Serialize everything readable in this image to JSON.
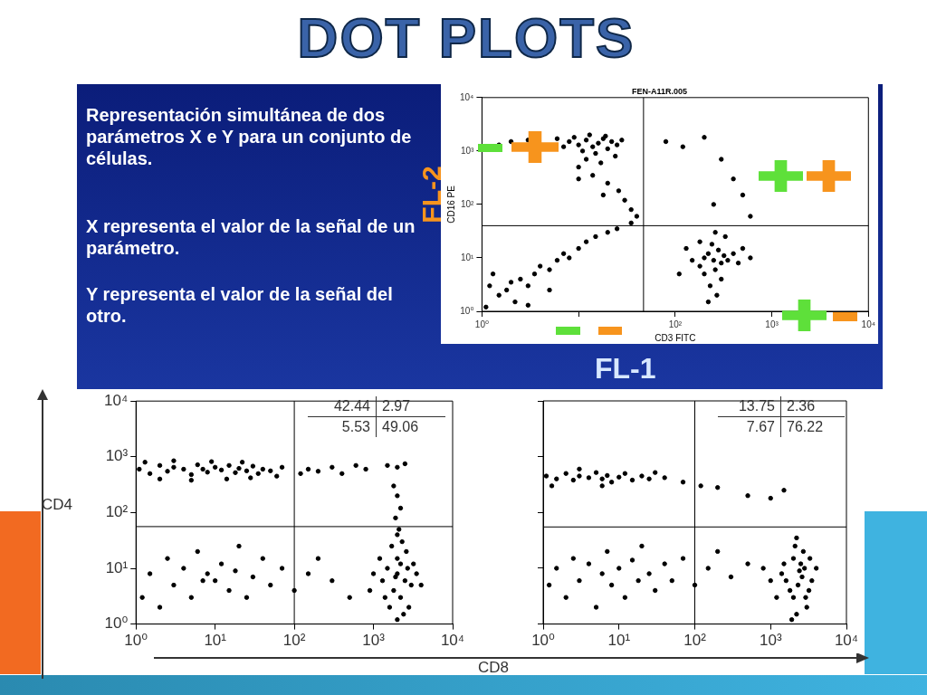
{
  "chart_data": [
    {
      "type": "other",
      "title": "DOT PLOTS",
      "annotations": [
        "Representación simultánea de dos parámetros X e Y para un conjunto de células.",
        "X representa el valor de la señal de un parámetro.",
        "Y representa el valor de la señal del otro."
      ]
    },
    {
      "type": "scatter",
      "title": "FEN-A11R.005",
      "xlabel": "CD3 FITC",
      "ylabel": "CD16 PE",
      "annotations": [
        "FL-2",
        "FL-1"
      ],
      "log": "xy",
      "color": "#000000",
      "marker": "circle",
      "grid": false,
      "legend": false,
      "xlim": [
        1,
        10000
      ],
      "ylim": [
        1,
        10000
      ],
      "xticks": [
        {
          "value": 1,
          "label": "10⁰"
        },
        {
          "value": 10,
          "label": null
        },
        {
          "value": 100,
          "label": "10²"
        },
        {
          "value": 1000,
          "label": "10³"
        },
        {
          "value": 10000,
          "label": "10⁴"
        }
      ],
      "yticks": [
        {
          "value": 1,
          "label": "10⁰"
        },
        {
          "value": 10,
          "label": "10¹"
        },
        {
          "value": 100,
          "label": "10²"
        },
        {
          "value": 1000,
          "label": "10³"
        },
        {
          "value": 10000,
          "label": "10⁴"
        }
      ],
      "ref_lines": [
        {
          "axis": "x",
          "value": 47
        },
        {
          "axis": "y",
          "value": 40
        }
      ],
      "x": [
        8,
        10,
        12,
        14,
        16,
        18,
        20,
        22,
        25,
        11,
        9,
        13,
        15,
        19,
        28,
        7,
        6,
        4,
        3,
        2,
        1.5,
        12,
        17,
        10,
        24,
        14,
        20,
        10,
        26,
        30,
        18,
        35,
        40,
        1.2,
        1.5,
        2,
        1.8,
        2.5,
        3,
        1.3,
        2.2,
        3.5,
        4,
        5,
        6,
        7,
        8,
        10,
        12,
        15,
        20,
        25,
        35,
        1.1,
        3,
        5,
        250,
        200,
        300,
        220,
        280,
        180,
        320,
        260,
        240,
        350,
        150,
        400,
        200,
        300,
        230,
        270,
        220,
        180,
        330,
        450,
        500,
        130,
        110,
        600,
        260,
        80,
        120,
        200,
        300,
        400,
        500,
        250,
        600
      ],
      "values": [
        1500,
        1300,
        1600,
        1200,
        1400,
        1700,
        1100,
        1500,
        1300,
        1000,
        1800,
        2000,
        900,
        1900,
        1600,
        1200,
        1700,
        null,
        1600,
        1500,
        1300,
        700,
        600,
        500,
        800,
        350,
        250,
        300,
        180,
        120,
        150,
        80,
        60,
        3,
        2,
        3.5,
        2.5,
        4,
        3,
        5,
        1.5,
        5,
        7,
        6,
        9,
        12,
        10,
        15,
        20,
        25,
        30,
        35,
        45,
        1.2,
        1.3,
        2.5,
        9,
        10,
        8,
        12,
        14,
        7,
        11,
        6,
        18,
        9,
        9,
        12,
        5,
        4,
        3,
        2,
        1.5,
        20,
        25,
        8,
        15,
        15,
        5,
        10,
        30,
        1500,
        1200,
        1800,
        700,
        300,
        150,
        100,
        60
      ]
    },
    {
      "type": "scatter",
      "ylabel": "CD4",
      "annotations": [
        "42.44",
        "2.97",
        "5.53",
        "49.06"
      ],
      "log": "xy",
      "color": "#000000",
      "marker": "circle",
      "grid": false,
      "legend": false,
      "xlim": [
        1,
        10000
      ],
      "ylim": [
        1,
        10000
      ],
      "xticks": [
        {
          "value": 1,
          "label": "10⁰"
        },
        {
          "value": 10,
          "label": "10¹"
        },
        {
          "value": 100,
          "label": "10²"
        },
        {
          "value": 1000,
          "label": "10³"
        },
        {
          "value": 10000,
          "label": "10⁴"
        }
      ],
      "yticks": [
        {
          "value": 1,
          "label": "10⁰"
        },
        {
          "value": 10,
          "label": "10¹"
        },
        {
          "value": 100,
          "label": "10²"
        },
        {
          "value": 1000,
          "label": "10³"
        },
        {
          "value": 10000,
          "label": "10⁴"
        }
      ],
      "ref_lines": [
        {
          "axis": "x",
          "value": 100
        },
        {
          "axis": "y",
          "value": 56
        }
      ],
      "x": [
        1.1,
        1.5,
        2,
        2.5,
        3,
        4,
        5,
        6,
        7,
        8,
        10,
        12,
        15,
        18,
        20,
        25,
        30,
        35,
        40,
        50,
        1.3,
        2,
        3,
        5,
        9,
        14,
        22,
        28,
        60,
        70,
        120,
        150,
        200,
        300,
        400,
        600,
        800,
        1500,
        2000,
        2500,
        1800,
        2000,
        2200,
        1900,
        2100,
        2000,
        1.2,
        1.5,
        2,
        2.5,
        3,
        4,
        5,
        6,
        7,
        8,
        10,
        12,
        15,
        18,
        20,
        25,
        30,
        40,
        50,
        70,
        100,
        150,
        200,
        300,
        500,
        1500,
        2000,
        2500,
        1800,
        2200,
        1600,
        2400,
        3000,
        1300,
        2000,
        2600,
        1700,
        2200,
        3500,
        1200,
        2800,
        2000,
        1400,
        3200,
        1000,
        2300,
        4000,
        900,
        1900,
        2700
      ],
      "values": [
        600,
        500,
        700,
        550,
        650,
        600,
        480,
        720,
        600,
        530,
        650,
        580,
        700,
        520,
        620,
        560,
        680,
        500,
        600,
        560,
        800,
        400,
        850,
        380,
        820,
        400,
        800,
        420,
        450,
        650,
        500,
        600,
        550,
        650,
        500,
        700,
        600,
        700,
        650,
        750,
        300,
        200,
        120,
        80,
        50,
        40,
        3,
        8,
        2,
        15,
        5,
        10,
        3,
        20,
        6,
        8,
        6,
        12,
        4,
        9,
        25,
        3,
        7,
        15,
        5,
        10,
        4,
        8,
        15,
        6,
        3,
        10,
        8,
        6,
        4,
        3,
        2,
        1.5,
        5,
        6,
        15,
        20,
        25,
        12,
        8,
        15,
        2,
        1.2,
        3,
        12,
        8,
        30,
        5,
        4,
        7,
        10
      ]
    },
    {
      "type": "scatter",
      "xlabel": "CD8",
      "annotations": [
        "13.75",
        "2.36",
        "7.67",
        "76.22"
      ],
      "log": "xy",
      "color": "#000000",
      "marker": "circle",
      "grid": false,
      "legend": false,
      "tick_labels": "x",
      "xlim": [
        1,
        10000
      ],
      "ylim": [
        1,
        10000
      ],
      "xticks": [
        {
          "value": 1,
          "label": "10⁰"
        },
        {
          "value": 10,
          "label": "10¹"
        },
        {
          "value": 100,
          "label": "10²"
        },
        {
          "value": 1000,
          "label": "10³"
        },
        {
          "value": 10000,
          "label": "10⁴"
        }
      ],
      "yticks": [
        {
          "value": 1,
          "label": null
        },
        {
          "value": 10,
          "label": null
        },
        {
          "value": 100,
          "label": null
        },
        {
          "value": 1000,
          "label": null
        },
        {
          "value": 10000,
          "label": null
        }
      ],
      "ref_lines": [
        {
          "axis": "x",
          "value": 100
        },
        {
          "axis": "y",
          "value": 55
        }
      ],
      "x": [
        1.1,
        1.5,
        2,
        2.5,
        3,
        4,
        5,
        6,
        7,
        8,
        10,
        12,
        15,
        20,
        25,
        30,
        1.3,
        3,
        6,
        40,
        70,
        120,
        200,
        500,
        1000,
        1500,
        1.2,
        1.5,
        2,
        2.5,
        3,
        4,
        5,
        6,
        7,
        8,
        10,
        12,
        15,
        18,
        20,
        25,
        30,
        40,
        50,
        70,
        100,
        150,
        200,
        300,
        500,
        2300,
        2000,
        2600,
        1800,
        2800,
        1600,
        3000,
        2200,
        2500,
        1400,
        3200,
        2000,
        2700,
        1900,
        3500,
        1200,
        2400,
        2100,
        4000,
        1500,
        2900,
        1000,
        800,
        3300,
        2200
      ],
      "values": [
        450,
        400,
        500,
        380,
        450,
        420,
        520,
        400,
        460,
        350,
        430,
        500,
        380,
        450,
        400,
        520,
        300,
        600,
        300,
        420,
        350,
        300,
        280,
        200,
        180,
        250,
        5,
        10,
        3,
        15,
        6,
        12,
        2,
        8,
        20,
        5,
        10,
        3,
        14,
        6,
        25,
        8,
        4,
        12,
        6,
        15,
        5,
        10,
        20,
        7,
        12,
        5,
        3,
        7,
        4,
        10,
        6,
        2,
        1.5,
        12,
        8,
        4,
        15,
        20,
        1.2,
        6,
        3,
        9,
        25,
        10,
        12,
        3,
        6,
        10,
        15,
        35
      ]
    }
  ]
}
